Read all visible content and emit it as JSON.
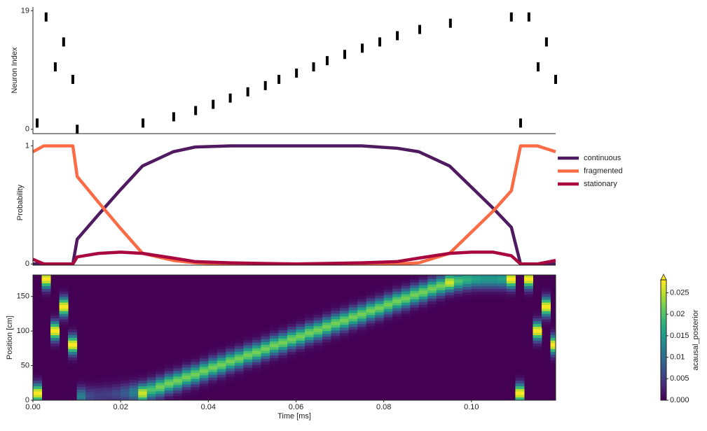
{
  "chart_data": [
    {
      "type": "raster",
      "ylabel": "Neuron Index",
      "x": [
        0.00096,
        0.003,
        0.0051,
        0.007,
        0.0091,
        0.0101,
        0.0251,
        0.0321,
        0.0371,
        0.0411,
        0.045,
        0.049,
        0.053,
        0.0561,
        0.0601,
        0.064,
        0.0671,
        0.0711,
        0.0751,
        0.0791,
        0.0831,
        0.0882,
        0.0952,
        0.1091,
        0.1112,
        0.1131,
        0.1152,
        0.1171,
        0.1192
      ],
      "y": [
        1,
        18,
        10,
        14,
        8,
        0,
        1,
        2,
        3,
        4,
        5,
        6,
        7,
        8,
        9,
        10,
        11,
        12,
        13,
        14,
        15,
        16,
        17,
        18,
        1,
        18,
        10,
        14,
        8
      ],
      "color": "#000000",
      "xlim": [
        0,
        0.1192
      ],
      "ylim": [
        -0.7,
        19.6
      ],
      "yticks": [
        0,
        19
      ]
    },
    {
      "type": "line",
      "ylabel": "Probability",
      "x": [
        0,
        0.0025,
        0.0091,
        0.0101,
        0.015,
        0.02,
        0.025,
        0.032,
        0.037,
        0.045,
        0.06,
        0.075,
        0.083,
        0.088,
        0.095,
        0.1,
        0.105,
        0.1091,
        0.1112,
        0.115,
        0.1192
      ],
      "series": [
        {
          "name": "continuous",
          "color": "#4f1a5f",
          "values": [
            0,
            0,
            0,
            0.21,
            0.42,
            0.63,
            0.83,
            0.95,
            0.99,
            1,
            1,
            1,
            0.98,
            0.95,
            0.83,
            0.65,
            0.47,
            0.31,
            0,
            0,
            0
          ]
        },
        {
          "name": "fragmented",
          "color": "#fb6b45",
          "values": [
            0.95,
            1,
            1,
            0.74,
            0.52,
            0.3,
            0.09,
            0.03,
            0.01,
            0,
            0,
            0,
            0,
            0.01,
            0.09,
            0.27,
            0.45,
            0.62,
            1,
            1,
            0.95
          ]
        },
        {
          "name": "stationary",
          "color": "#a8083f",
          "values": [
            0.04,
            0,
            0,
            0.06,
            0.09,
            0.1,
            0.09,
            0.05,
            0.02,
            0.01,
            0,
            0.01,
            0.02,
            0.05,
            0.09,
            0.1,
            0.1,
            0.07,
            0,
            0,
            0.03
          ]
        }
      ],
      "legend": "upper right",
      "xlim": [
        0,
        0.1192
      ],
      "ylim": [
        -0.01,
        1.05
      ],
      "yticks": [
        0,
        1
      ]
    },
    {
      "type": "heatmap",
      "xlabel": "Time [ms]",
      "ylabel": "Position [cm]",
      "x": [
        0.001,
        0.003,
        0.005,
        0.007,
        0.009,
        0.011,
        0.013,
        0.015,
        0.017,
        0.019,
        0.021,
        0.023,
        0.025,
        0.027,
        0.029,
        0.031,
        0.033,
        0.035,
        0.037,
        0.039,
        0.041,
        0.043,
        0.045,
        0.047,
        0.049,
        0.051,
        0.053,
        0.055,
        0.057,
        0.059,
        0.061,
        0.063,
        0.065,
        0.067,
        0.069,
        0.071,
        0.073,
        0.075,
        0.077,
        0.079,
        0.081,
        0.083,
        0.085,
        0.087,
        0.089,
        0.091,
        0.093,
        0.095,
        0.097,
        0.099,
        0.101,
        0.103,
        0.105,
        0.107,
        0.109,
        0.111,
        0.113,
        0.115,
        0.117,
        0.119
      ],
      "y": [
        10,
        175,
        100,
        135,
        80,
        5,
        6,
        7,
        8,
        9,
        10,
        11,
        10,
        15,
        19,
        24,
        28,
        33,
        37,
        42,
        47,
        51,
        56,
        60,
        65,
        69,
        74,
        79,
        83,
        88,
        92,
        97,
        101,
        106,
        111,
        115,
        120,
        124,
        129,
        133,
        138,
        143,
        147,
        152,
        156,
        161,
        165,
        170,
        172,
        174,
        175,
        175,
        175,
        175,
        175,
        10,
        175,
        100,
        135,
        80
      ],
      "values": [
        0.028,
        0.028,
        0.028,
        0.028,
        0.028,
        0.012,
        0.006,
        0.005,
        0.005,
        0.006,
        0.008,
        0.012,
        0.026,
        0.02,
        0.022,
        0.022,
        0.022,
        0.022,
        0.022,
        0.022,
        0.022,
        0.022,
        0.022,
        0.022,
        0.022,
        0.022,
        0.022,
        0.022,
        0.022,
        0.022,
        0.022,
        0.022,
        0.022,
        0.022,
        0.022,
        0.022,
        0.022,
        0.022,
        0.022,
        0.022,
        0.022,
        0.022,
        0.022,
        0.022,
        0.022,
        0.022,
        0.022,
        0.026,
        0.02,
        0.018,
        0.016,
        0.015,
        0.015,
        0.016,
        0.028,
        0.028,
        0.028,
        0.028,
        0.028,
        0.028
      ],
      "xlim": [
        0,
        0.1192
      ],
      "ylim": [
        0,
        181
      ],
      "yticks": [
        0,
        50,
        100,
        150
      ],
      "xticks": [
        {
          "value": 0,
          "label": "0.00"
        },
        {
          "value": 0.02,
          "label": "0.02"
        },
        {
          "value": 0.04,
          "label": "0.04"
        },
        {
          "value": 0.06,
          "label": "0.06"
        },
        {
          "value": 0.08,
          "label": "0.08"
        },
        {
          "value": 0.1,
          "label": "0.10"
        }
      ],
      "colorbar": {
        "label": "acausal_posterior",
        "lim": [
          0,
          0.028
        ],
        "ticks": [
          {
            "value": 0,
            "label": "0.000"
          },
          0.005,
          0.01,
          0.015,
          0.02,
          0.025
        ]
      }
    }
  ]
}
